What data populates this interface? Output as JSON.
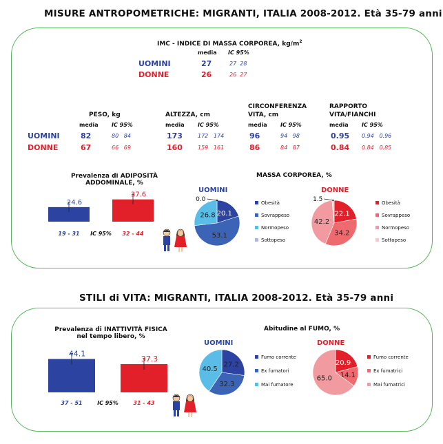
{
  "title1": "MISURE ANTROPOMETRICHE: MIGRANTI, ITALIA 2008-2012. Età 35-79 anni",
  "title2": "STILI di VITA: MIGRANTI, ITALIA 2008-2012. Età 35-79 anni",
  "colors": {
    "men": "#2c43a1",
    "women": "#e2202a",
    "border": "#57b85a"
  },
  "imc": {
    "title": "IMC - INDICE DI MASSA CORPOREA, kg/m",
    "title_sup": "2",
    "media": "media",
    "ic": "IC 95%",
    "men": {
      "label": "UOMINI",
      "value": "27",
      "ci_low": "27",
      "ci_high": "28"
    },
    "women": {
      "label": "DONNE",
      "value": "26",
      "ci_low": "26",
      "ci_high": "27"
    }
  },
  "measures": {
    "men_label": "UOMINI",
    "women_label": "DONNE",
    "media": "media",
    "ic": "IC 95%",
    "items": [
      {
        "title": [
          "PESO, kg"
        ],
        "men": {
          "v": "82",
          "lo": "80",
          "hi": "84"
        },
        "women": {
          "v": "67",
          "lo": "66",
          "hi": "69"
        }
      },
      {
        "title": [
          "ALTEZZA, cm"
        ],
        "men": {
          "v": "173",
          "lo": "172",
          "hi": "174"
        },
        "women": {
          "v": "160",
          "lo": "159",
          "hi": "161"
        }
      },
      {
        "title": [
          "CIRCONFERENZA",
          "VITA, cm"
        ],
        "men": {
          "v": "96",
          "lo": "94",
          "hi": "98"
        },
        "women": {
          "v": "86",
          "lo": "84",
          "hi": "87"
        }
      },
      {
        "title": [
          "RAPPORTO",
          "VITA/FIANCHI"
        ],
        "men": {
          "v": "0.95",
          "lo": "0.94",
          "hi": "0.96"
        },
        "women": {
          "v": "0.84",
          "lo": "0.84",
          "hi": "0.85"
        }
      }
    ]
  },
  "chart_data": [
    {
      "type": "bar",
      "title": [
        "Prevalenza di ADIPOSITÀ",
        "ADDOMINALE, %"
      ],
      "categories": [
        "UOMINI",
        "DONNE"
      ],
      "values": [
        24.6,
        37.6
      ],
      "ci": [
        "19 - 31",
        "32 - 44"
      ],
      "ci_label": "IC 95%",
      "ylim": [
        0,
        50
      ]
    },
    {
      "type": "pie",
      "title": "MASSA CORPOREA, %",
      "group": "UOMINI",
      "labels": [
        "Obesità",
        "Sovrappeso",
        "Normopeso",
        "Sottopeso"
      ],
      "values": [
        20.1,
        53.1,
        26.8,
        0.0
      ],
      "colors": [
        "#2c43a1",
        "#3b64b6",
        "#59bde8",
        "#b0b8d8"
      ]
    },
    {
      "type": "pie",
      "title": "MASSA CORPOREA, %",
      "group": "DONNE",
      "labels": [
        "Obesità",
        "Sovrappeso",
        "Normopeso",
        "Sottopeso"
      ],
      "values": [
        22.1,
        34.2,
        42.2,
        1.5
      ],
      "colors": [
        "#e2202a",
        "#ee6a6f",
        "#f19ba1",
        "#f7c8cb"
      ]
    },
    {
      "type": "bar",
      "title": [
        "Prevalenza di INATTIVITÀ FISICA",
        "nel tempo libero, %"
      ],
      "categories": [
        "UOMINI",
        "DONNE"
      ],
      "values": [
        44.1,
        37.3
      ],
      "ci": [
        "37 - 51",
        "31 - 43"
      ],
      "ci_label": "IC 95%",
      "ylim": [
        0,
        55
      ]
    },
    {
      "type": "pie",
      "title": "Abitudine al FUMO, %",
      "group": "UOMINI",
      "labels": [
        "Fumo corrente",
        "Ex fumatori",
        "Mai fumatore"
      ],
      "values": [
        27.2,
        32.3,
        40.5
      ],
      "colors": [
        "#2c43a1",
        "#3b64b6",
        "#59bde8"
      ]
    },
    {
      "type": "pie",
      "title": "Abitudine al FUMO, %",
      "group": "DONNE",
      "labels": [
        "Fumo corrente",
        "Ex fumatrici",
        "Mai fumatrici"
      ],
      "values": [
        20.9,
        14.1,
        65.0
      ],
      "colors": [
        "#e2202a",
        "#ee6a6f",
        "#f19ba1"
      ]
    }
  ]
}
